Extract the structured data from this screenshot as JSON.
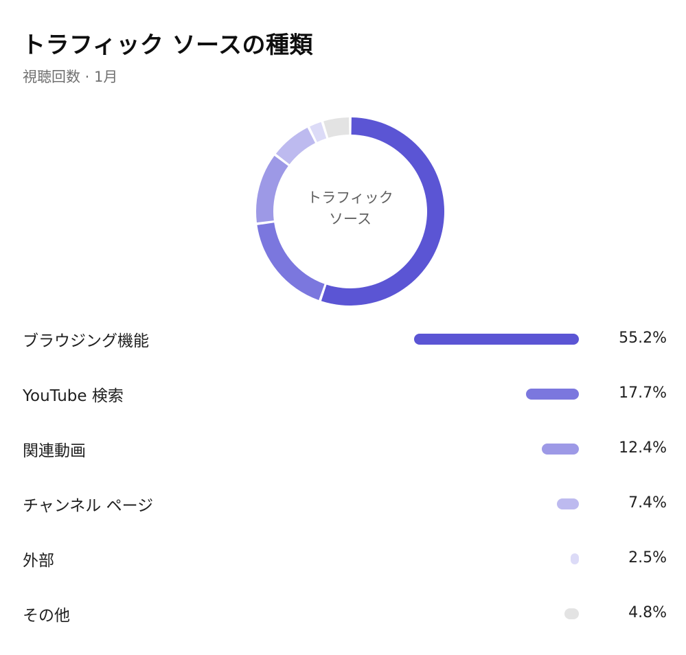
{
  "header": {
    "title": "トラフィック ソースの種類",
    "subtitle": "視聴回数 · 1月"
  },
  "chart_data": {
    "type": "pie",
    "title": "トラフィック ソースの種類",
    "subtitle": "視聴回数 · 1月",
    "center_label": "トラフィック ソース",
    "categories": [
      "ブラウジング機能",
      "YouTube 検索",
      "関連動画",
      "チャンネル ページ",
      "外部",
      "その他"
    ],
    "values": [
      55.2,
      17.7,
      12.4,
      7.4,
      2.5,
      4.8
    ],
    "value_labels": [
      "55.2%",
      "17.7%",
      "12.4%",
      "7.4%",
      "2.5%",
      "4.8%"
    ],
    "colors": [
      "#5b55d4",
      "#7b77de",
      "#9d99e6",
      "#bdbaef",
      "#dcdbf7",
      "#e3e3e3"
    ],
    "unit": "%"
  }
}
